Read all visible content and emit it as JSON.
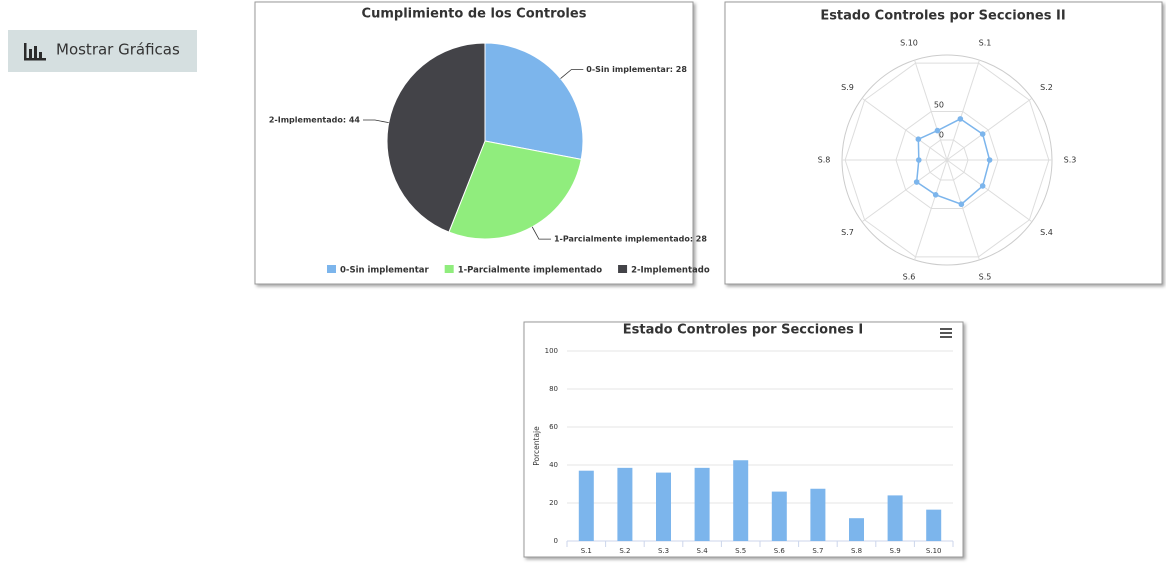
{
  "toolbar": {
    "button": "Mostrar Gráficas"
  },
  "chart_data": [
    {
      "type": "pie",
      "title": "Cumplimiento de los Controles",
      "categories": [
        "0-Sin implementar",
        "1-Parcialmente implementado",
        "2-Implementado"
      ],
      "values": [
        28,
        28,
        44
      ],
      "value_labels": [
        "0-Sin implementar: 28",
        "1-Parcialmente implementado: 28",
        "2-Implementado: 44"
      ],
      "colors": [
        "#7cb5ec",
        "#90ed7d",
        "#434348"
      ]
    },
    {
      "type": "radar",
      "title": "Estado Controles por Secciones II",
      "categories": [
        "S.1",
        "S.2",
        "S.3",
        "S.4",
        "S.5",
        "S.6",
        "S.7",
        "S.8",
        "S.9",
        "S.10"
      ],
      "values": [
        37,
        38.5,
        36,
        38.5,
        42.5,
        26,
        27.5,
        12,
        24,
        16.5
      ],
      "color": "#7cb5ec",
      "ylim": [
        -35,
        140
      ],
      "yticks": [
        0,
        50
      ]
    },
    {
      "type": "bar",
      "title": "Estado Controles por Secciones I",
      "ylabel": "Porcentaje",
      "categories": [
        "S.1",
        "S.2",
        "S.3",
        "S.4",
        "S.5",
        "S.6",
        "S.7",
        "S.8",
        "S.9",
        "S.10"
      ],
      "values": [
        37,
        38.5,
        36,
        38.5,
        42.5,
        26,
        27.5,
        12,
        24,
        16.5
      ],
      "color": "#7cb5ec",
      "ylim": [
        0,
        100
      ],
      "yticks": [
        0,
        20,
        40,
        60,
        80,
        100
      ],
      "grid": true
    }
  ]
}
